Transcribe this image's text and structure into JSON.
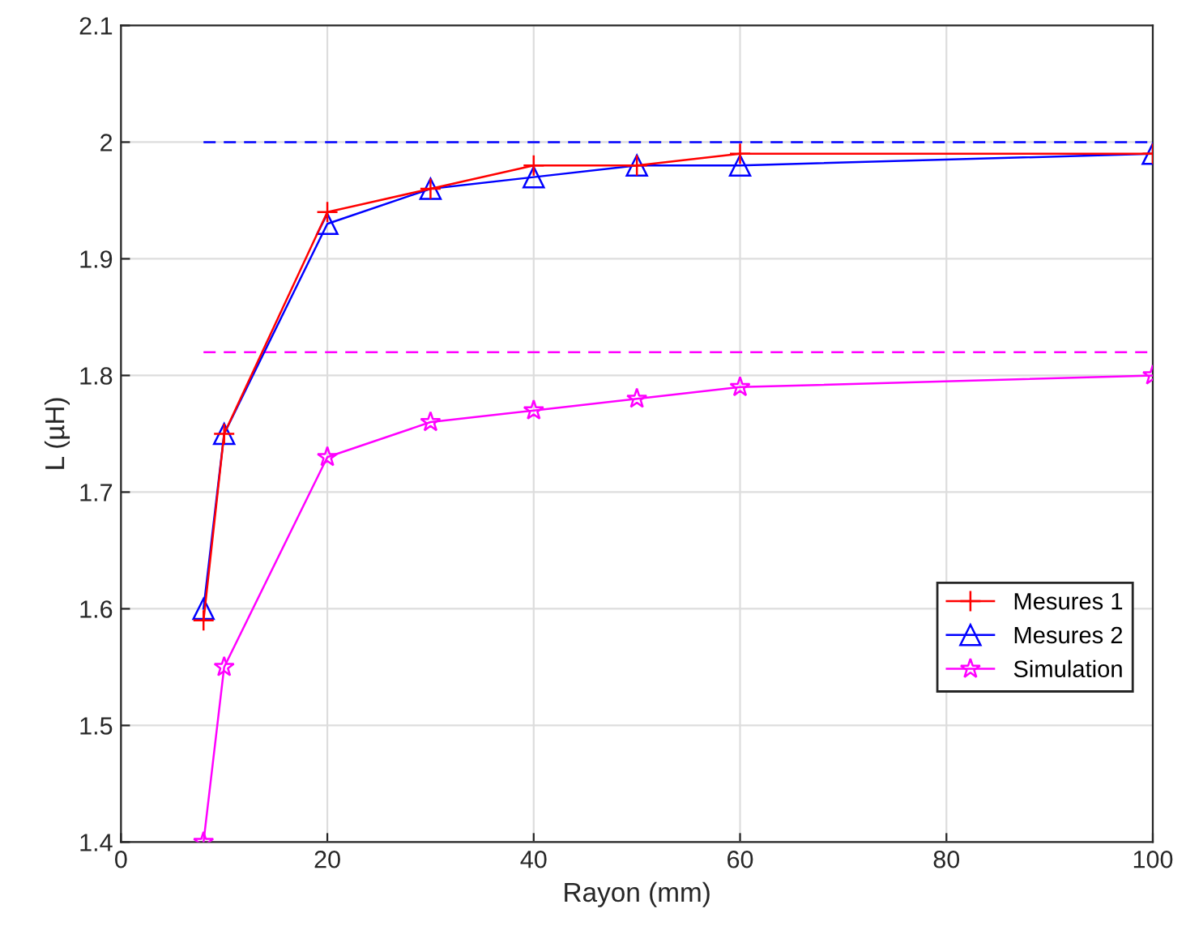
{
  "chart_data": {
    "type": "line",
    "xlabel": "Rayon (mm)",
    "ylabel": "L (µH)",
    "x": [
      8,
      10,
      20,
      30,
      40,
      50,
      60,
      100
    ],
    "series": [
      {
        "name": "Mesures 1",
        "color": "#ff0000",
        "marker": "cross",
        "values": [
          1.59,
          1.75,
          1.94,
          1.96,
          1.98,
          1.98,
          1.99,
          1.99
        ]
      },
      {
        "name": "Mesures 2",
        "color": "#0000ff",
        "marker": "triangle",
        "values": [
          1.6,
          1.75,
          1.93,
          1.96,
          1.97,
          1.98,
          1.98,
          1.99
        ]
      },
      {
        "name": "Simulation",
        "color": "#ff00ff",
        "marker": "star",
        "values": [
          1.4,
          1.55,
          1.73,
          1.76,
          1.77,
          1.78,
          1.79,
          1.8
        ]
      },
      {
        "color": "#0000ff",
        "values": [
          2,
          2,
          2,
          2,
          2,
          2,
          2,
          2
        ],
        "line_style": "dashed",
        "marker": "none"
      },
      {
        "color": "#ff00ff",
        "values": [
          1.82,
          1.82,
          1.82,
          1.82,
          1.82,
          1.82,
          1.82,
          1.82
        ],
        "line_style": "dashed",
        "marker": "none"
      }
    ],
    "xlim": [
      0,
      100
    ],
    "xticks": [
      0,
      20,
      40,
      60,
      80,
      100
    ],
    "ylim": [
      1.4,
      2.1
    ],
    "yticks": [
      1.4,
      1.5,
      1.6,
      1.7,
      1.8,
      1.9,
      2,
      2.1
    ],
    "grid": true,
    "legend": "bottom right",
    "line_style": "solid"
  }
}
